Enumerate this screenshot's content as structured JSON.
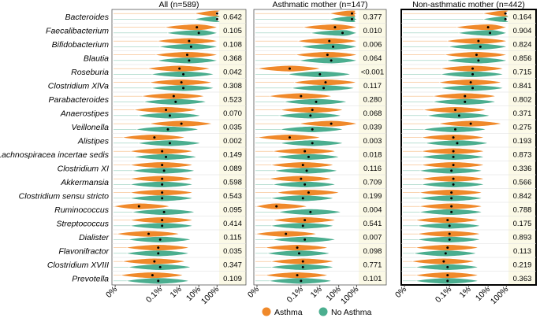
{
  "chart_data": {
    "type": "violin",
    "x_scale": "log-relative-abundance",
    "x_ticks": [
      "0%",
      "0.1%",
      "1%",
      "10%",
      "100%"
    ],
    "legend": {
      "items": [
        {
          "name": "Asthma",
          "color": "#F0892A"
        },
        {
          "name": "No Asthma",
          "color": "#4BAE8F"
        }
      ],
      "position": "bottom-center"
    },
    "taxa": [
      "Bacteroides",
      "Faecalibacterium",
      "Bifidobacterium",
      "Blautia",
      "Roseburia",
      "Clostridium XlVa",
      "Parabacteroides",
      "Anaerostipes",
      "Veillonella",
      "Alistipes",
      "Lachnospiracea incertae sedis",
      "Clostridium XI",
      "Akkermansia",
      "Clostridium sensu stricto",
      "Ruminococcus",
      "Streptococcus",
      "Dialister",
      "Flavonifractor",
      "Clostridium XVIII",
      "Prevotella"
    ],
    "panels": [
      {
        "title": "All (n=589)",
        "highlighted": false,
        "p_values": [
          "0.642",
          "0.105",
          "0.108",
          "0.368",
          "0.042",
          "0.308",
          "0.523",
          "0.070",
          "0.035",
          "0.002",
          "0.149",
          "0.089",
          "0.598",
          "0.543",
          "0.095",
          "0.414",
          "0.115",
          "0.035",
          "0.347",
          "0.109"
        ],
        "asthma_median": [
          1.95,
          0.9,
          0.5,
          0.4,
          0.0,
          0.1,
          -0.3,
          -0.7,
          0.1,
          -1.3,
          -0.9,
          -0.9,
          -0.9,
          -0.9,
          -2.1,
          -0.9,
          -1.6,
          -1.1,
          -1.3,
          -1.4
        ],
        "no_asthma_median": [
          1.95,
          1.0,
          0.6,
          0.5,
          0.2,
          0.2,
          -0.2,
          -0.5,
          -0.6,
          -0.5,
          -0.7,
          -0.8,
          -0.9,
          -0.9,
          -0.8,
          -0.9,
          -1.0,
          -1.1,
          -1.0,
          -1.1
        ]
      },
      {
        "title": "Asthmatic mother (n=147)",
        "highlighted": false,
        "p_values": [
          "0.377",
          "0.010",
          "0.006",
          "0.064",
          "<0.001",
          "0.117",
          "0.280",
          "0.068",
          "0.039",
          "0.003",
          "0.018",
          "0.116",
          "0.709",
          "0.199",
          "0.004",
          "0.541",
          "0.007",
          "0.098",
          "0.771",
          "0.101"
        ],
        "asthma_median": [
          1.7,
          0.8,
          0.5,
          0.4,
          -1.6,
          0.3,
          -1.0,
          -0.4,
          0.6,
          -1.6,
          -0.8,
          -0.9,
          -1.0,
          -0.6,
          -2.3,
          -0.8,
          -1.8,
          -1.2,
          -0.9,
          -1.2
        ],
        "no_asthma_median": [
          1.7,
          1.2,
          0.7,
          0.6,
          0.0,
          0.2,
          -0.2,
          -0.5,
          -0.4,
          -0.4,
          -0.6,
          -0.7,
          -0.8,
          -0.9,
          -0.5,
          -0.9,
          -0.8,
          -1.1,
          -0.9,
          -1.0
        ]
      },
      {
        "title": "Non-asthmatic mother (n=442)",
        "highlighted": true,
        "p_values": [
          "0.164",
          "0.904",
          "0.824",
          "0.856",
          "0.715",
          "0.841",
          "0.802",
          "0.371",
          "0.275",
          "0.193",
          "0.873",
          "0.336",
          "0.566",
          "0.842",
          "0.788",
          "0.175",
          "0.893",
          "0.113",
          "0.219",
          "0.363"
        ],
        "asthma_median": [
          1.9,
          1.0,
          0.5,
          0.4,
          0.2,
          0.1,
          -0.2,
          -0.7,
          0.1,
          -0.8,
          -0.8,
          -0.8,
          -0.8,
          -0.9,
          -0.9,
          -1.1,
          -1.0,
          -1.1,
          -1.3,
          -1.1
        ],
        "no_asthma_median": [
          1.9,
          1.1,
          0.6,
          0.5,
          0.2,
          0.2,
          -0.2,
          -0.5,
          -0.7,
          -0.6,
          -0.8,
          -0.9,
          -0.8,
          -0.9,
          -0.9,
          -1.0,
          -1.0,
          -1.2,
          -1.1,
          -1.1
        ]
      }
    ]
  }
}
